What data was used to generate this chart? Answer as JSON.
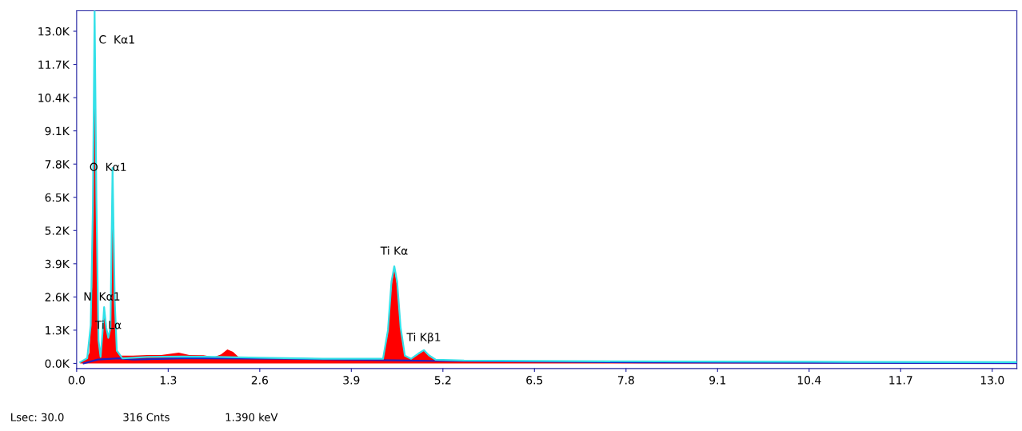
{
  "chart_data": {
    "type": "area",
    "xlim": [
      0,
      13.35
    ],
    "ylim": [
      -200,
      13800
    ],
    "xticks": [
      {
        "value": 0,
        "label": "0.0"
      },
      {
        "value": 1.3,
        "label": "1.3"
      },
      {
        "value": 2.6,
        "label": "2.6"
      },
      {
        "value": 3.9,
        "label": "3.9"
      },
      {
        "value": 5.2,
        "label": "5.2"
      },
      {
        "value": 6.5,
        "label": "6.5"
      },
      {
        "value": 7.8,
        "label": "7.8"
      },
      {
        "value": 9.1,
        "label": "9.1"
      },
      {
        "value": 10.4,
        "label": "10.4"
      },
      {
        "value": 11.7,
        "label": "11.7"
      },
      {
        "value": 13.0,
        "label": "13.0"
      }
    ],
    "yticks": [
      {
        "value": 0,
        "label": "0.0K"
      },
      {
        "value": 1300,
        "label": "1.3K"
      },
      {
        "value": 2600,
        "label": "2.6K"
      },
      {
        "value": 3900,
        "label": "3.9K"
      },
      {
        "value": 5200,
        "label": "5.2K"
      },
      {
        "value": 6500,
        "label": "6.5K"
      },
      {
        "value": 7800,
        "label": "7.8K"
      },
      {
        "value": 9100,
        "label": "9.1K"
      },
      {
        "value": 10400,
        "label": "10.4K"
      },
      {
        "value": 11700,
        "label": "11.7K"
      },
      {
        "value": 13000,
        "label": "13.0K"
      }
    ],
    "grid": false,
    "series": [
      {
        "color": "#ff0000",
        "x": [
          0.05,
          0.12,
          0.18,
          0.22,
          0.25,
          0.28,
          0.31,
          0.34,
          0.37,
          0.39,
          0.42,
          0.45,
          0.48,
          0.51,
          0.54,
          0.57,
          0.62,
          0.8,
          1.0,
          1.2,
          1.45,
          1.6,
          1.8,
          1.95,
          2.05,
          2.14,
          2.22,
          2.3,
          2.6,
          3.0,
          3.5,
          4.0,
          4.35,
          4.42,
          4.47,
          4.51,
          4.55,
          4.6,
          4.66,
          4.75,
          4.85,
          4.93,
          5.0,
          5.1,
          5.5,
          7.0,
          9.0,
          9.7,
          11.0,
          13.35
        ],
        "values": [
          50,
          150,
          400,
          3000,
          12500,
          6000,
          800,
          300,
          1200,
          2000,
          1300,
          1000,
          1300,
          7500,
          2500,
          500,
          300,
          300,
          330,
          330,
          420,
          330,
          320,
          250,
          350,
          550,
          450,
          250,
          220,
          180,
          170,
          150,
          170,
          1200,
          3000,
          3750,
          3000,
          1300,
          300,
          180,
          350,
          500,
          300,
          120,
          90,
          70,
          50,
          60,
          40,
          30
        ]
      },
      {
        "type": "line",
        "color": "#33e0e8",
        "x": [
          0.05,
          0.15,
          0.2,
          0.23,
          0.255,
          0.28,
          0.31,
          0.34,
          0.37,
          0.39,
          0.42,
          0.45,
          0.48,
          0.51,
          0.54,
          0.57,
          0.65,
          1.0,
          1.5,
          2.0,
          2.6,
          3.5,
          4.35,
          4.42,
          4.47,
          4.51,
          4.55,
          4.6,
          4.66,
          4.75,
          4.85,
          4.93,
          5.0,
          5.1,
          5.5,
          7.0,
          9.0,
          11.0,
          13.35
        ],
        "values": [
          50,
          200,
          1500,
          6000,
          13800,
          6500,
          900,
          250,
          1300,
          2200,
          1400,
          1000,
          1400,
          7650,
          2500,
          500,
          200,
          250,
          270,
          250,
          220,
          180,
          180,
          1300,
          3200,
          3800,
          3200,
          1400,
          300,
          180,
          380,
          520,
          320,
          140,
          110,
          90,
          70,
          60,
          50
        ]
      },
      {
        "type": "line",
        "color": "#2020c0",
        "x": [
          0.1,
          0.3,
          0.6,
          0.8,
          1.5,
          3.0,
          5.0,
          8.0,
          13.35
        ],
        "values": [
          0,
          150,
          200,
          150,
          200,
          180,
          100,
          40,
          10
        ]
      }
    ],
    "annotations": [
      {
        "text": "C  Kα1",
        "x": 0.25,
        "y": 12900
      },
      {
        "text": "O  Kα1",
        "x": 0.51,
        "y": 7650
      },
      {
        "text": "N  Kα1",
        "x": 0.39,
        "y": 2200
      },
      {
        "text": "Ti Lα",
        "x": 0.45,
        "y": 1000
      },
      {
        "text": "Ti Kα",
        "x": 4.51,
        "y": 3900
      },
      {
        "text": "Ti Kβ1",
        "x": 4.93,
        "y": 520
      },
      "Lsec: 30.0",
      "316 Cnts",
      "1.390 keV"
    ]
  }
}
